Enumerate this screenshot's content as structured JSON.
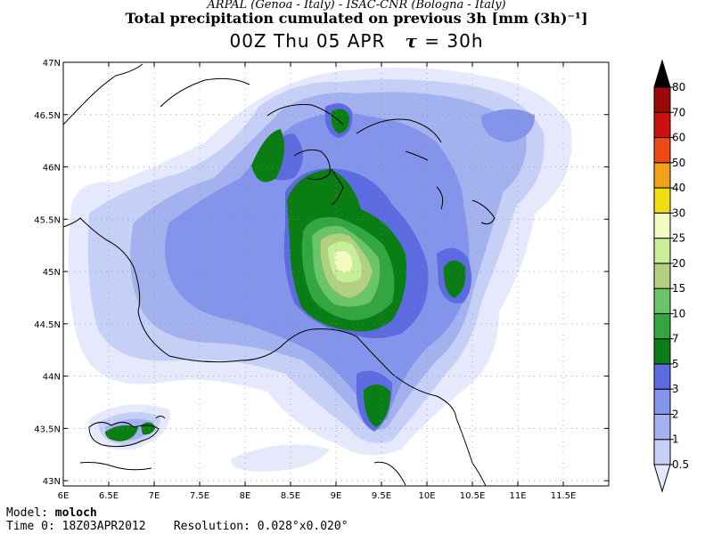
{
  "header": {
    "institutions": "ARPAL (Genoa - Italy)  -  ISAC-CNR (Bologna - Italy)",
    "title": "Total precipitation cumulated on previous 3h [mm (3h)⁻¹]",
    "run": "00Z Thu 05 APR",
    "tau_symbol": "τ",
    "tau_value": "= 30h"
  },
  "axes": {
    "lon_labels": [
      "6E",
      "6.5E",
      "7E",
      "7.5E",
      "8E",
      "8.5E",
      "9E",
      "9.5E",
      "10E",
      "10.5E",
      "11E",
      "11.5E"
    ],
    "lat_labels": [
      "47N",
      "46.5N",
      "46N",
      "45.5N",
      "45N",
      "44.5N",
      "44N",
      "43.5N",
      "43N"
    ],
    "lon_range": [
      6,
      12
    ],
    "lat_range": [
      42.95,
      47
    ]
  },
  "legend": {
    "levels": [
      "0.5",
      "1",
      "2",
      "3",
      "5",
      "7",
      "10",
      "15",
      "20",
      "25",
      "30",
      "40",
      "50",
      "60",
      "70",
      "80"
    ],
    "colors": [
      "#e6e9fb",
      "#c6cff5",
      "#a3b2ef",
      "#8494ea",
      "#5d6be0",
      "#0a7e14",
      "#33a63f",
      "#6bc468",
      "#b3cf80",
      "#c8ee98",
      "#f2fbc0",
      "#eedd10",
      "#f0a21a",
      "#ee4a18",
      "#cc1010",
      "#9a0a0a",
      "#5a0808",
      "#000000"
    ]
  },
  "footer": {
    "model_label": "Model:",
    "model_value": "moloch",
    "time_label": "Time 0:",
    "time_value": "18Z03APR2012",
    "res_label": "Resolution:",
    "res_value": "0.028°x0.020°"
  }
}
